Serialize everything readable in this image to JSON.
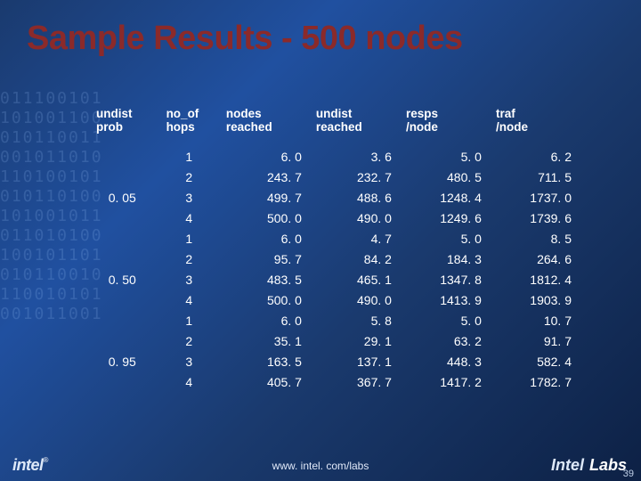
{
  "title": "Sample Results - 500 nodes",
  "columns": {
    "c0": "undist\nprob",
    "c1": "no_of\nhops",
    "c2": "nodes\nreached",
    "c3": "undist\nreached",
    "c4": "resps\n/node",
    "c5": "traf\n/node"
  },
  "groups": [
    {
      "label": "0. 05",
      "rows": [
        {
          "h": "1",
          "nr": "6. 0",
          "ur": "3. 6",
          "rn": "5. 0",
          "tn": "6. 2"
        },
        {
          "h": "2",
          "nr": "243. 7",
          "ur": "232. 7",
          "rn": "480. 5",
          "tn": "711. 5"
        },
        {
          "h": "3",
          "nr": "499. 7",
          "ur": "488. 6",
          "rn": "1248. 4",
          "tn": "1737. 0"
        },
        {
          "h": "4",
          "nr": "500. 0",
          "ur": "490. 0",
          "rn": "1249. 6",
          "tn": "1739. 6"
        }
      ]
    },
    {
      "label": "0. 50",
      "rows": [
        {
          "h": "1",
          "nr": "6. 0",
          "ur": "4. 7",
          "rn": "5. 0",
          "tn": "8. 5"
        },
        {
          "h": "2",
          "nr": "95. 7",
          "ur": "84. 2",
          "rn": "184. 3",
          "tn": "264. 6"
        },
        {
          "h": "3",
          "nr": "483. 5",
          "ur": "465. 1",
          "rn": "1347. 8",
          "tn": "1812. 4"
        },
        {
          "h": "4",
          "nr": "500. 0",
          "ur": "490. 0",
          "rn": "1413. 9",
          "tn": "1903. 9"
        }
      ]
    },
    {
      "label": "0. 95",
      "rows": [
        {
          "h": "1",
          "nr": "6. 0",
          "ur": "5. 8",
          "rn": "5. 0",
          "tn": "10. 7"
        },
        {
          "h": "2",
          "nr": "35. 1",
          "ur": "29. 1",
          "rn": "63. 2",
          "tn": "91. 7"
        },
        {
          "h": "3",
          "nr": "163. 5",
          "ur": "137. 1",
          "rn": "448. 3",
          "tn": "582. 4"
        },
        {
          "h": "4",
          "nr": "405. 7",
          "ur": "367. 7",
          "rn": "1417. 2",
          "tn": "1782. 7"
        }
      ]
    }
  ],
  "footer": {
    "url": "www. intel. com/labs",
    "left_brand": "intel",
    "right_brand": "Intel",
    "right_sub": "Labs",
    "pagenum": "39"
  },
  "bg_noise": "011100101\n101001100\n010110011\n001011010\n110100101\n010110100\n101001011\n011010100\n100101101\n010110010\n110010101\n001011001"
}
